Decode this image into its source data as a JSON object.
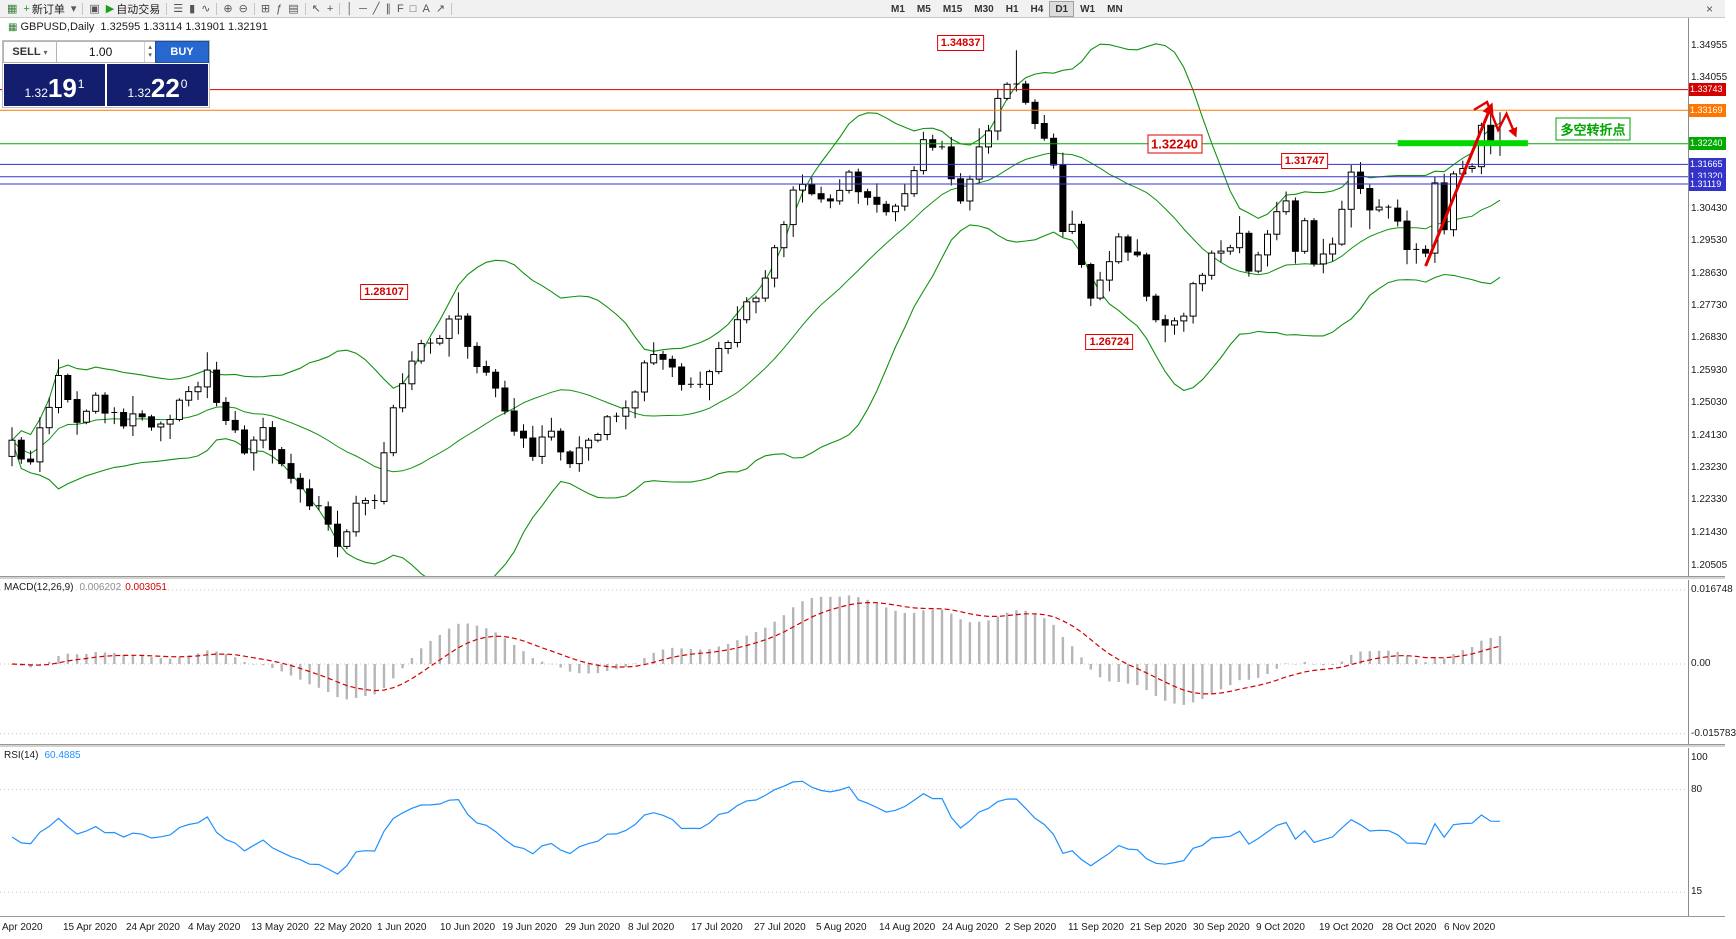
{
  "window": {
    "close_icon": "×"
  },
  "toolbar": {
    "buttons": [
      {
        "name": "chart-window-icon",
        "glyph": "▦",
        "color": "#3a7d3a"
      },
      {
        "name": "new-order-button",
        "glyph": "+",
        "color": "#1e9e1e",
        "label": "新订单"
      },
      {
        "name": "chart-dropdown-icon",
        "glyph": "▾"
      },
      {
        "sep": true
      },
      {
        "name": "expert-advisors-icon",
        "glyph": "▣"
      },
      {
        "name": "autotrading-button",
        "glyph": "▶",
        "color": "#18a018",
        "label": "自动交易"
      },
      {
        "sep": true
      },
      {
        "name": "bar-chart-icon",
        "glyph": "☰"
      },
      {
        "name": "candlestick-chart-icon",
        "glyph": "▮"
      },
      {
        "name": "line-chart-icon",
        "glyph": "∿"
      },
      {
        "sep": true
      },
      {
        "name": "zoom-in-icon",
        "glyph": "⊕"
      },
      {
        "name": "zoom-out-icon",
        "glyph": "⊖"
      },
      {
        "sep": true
      },
      {
        "name": "tile-windows-icon",
        "glyph": "⊞"
      },
      {
        "name": "indicators-icon",
        "glyph": "ƒ"
      },
      {
        "name": "templates-icon",
        "glyph": "▤"
      },
      {
        "sep": true
      },
      {
        "name": "cursor-icon",
        "glyph": "↖"
      },
      {
        "name": "crosshair-icon",
        "glyph": "+"
      },
      {
        "sep": true
      },
      {
        "name": "vertical-line-icon",
        "glyph": "│"
      },
      {
        "name": "horizontal-line-icon",
        "glyph": "─"
      },
      {
        "name": "trendline-icon",
        "glyph": "╱"
      },
      {
        "name": "channel-icon",
        "glyph": "∥"
      },
      {
        "name": "fibonacci-icon",
        "glyph": "F"
      },
      {
        "name": "shapes-icon",
        "glyph": "□"
      },
      {
        "name": "text-icon",
        "glyph": "A"
      },
      {
        "name": "arrows-icon",
        "glyph": "↗"
      },
      {
        "sep": true
      }
    ],
    "timeframes": [
      "M1",
      "M5",
      "M15",
      "M30",
      "H1",
      "H4",
      "D1",
      "W1",
      "MN"
    ],
    "active_timeframe": "D1"
  },
  "chart": {
    "title": "GBPUSD,Daily",
    "ohlc": "1.32595 1.33114 1.31901 1.32191"
  },
  "trade_panel": {
    "sell_label": "SELL",
    "buy_label": "BUY",
    "volume": "1.00",
    "bid": {
      "big": "1.32",
      "pips": "19",
      "point": "1"
    },
    "ask": {
      "big": "1.32",
      "pips": "22",
      "point": "0"
    }
  },
  "macd": {
    "label": "MACD(12,26,9)",
    "value_main": "0.006202",
    "value_signal": "0.003051",
    "axis": [
      "0.016748",
      "0.00",
      "-0.015783"
    ]
  },
  "rsi": {
    "label": "RSI(14)",
    "value": "60.4885",
    "axis": [
      "100",
      "80",
      "15"
    ],
    "levels": [
      80,
      15
    ]
  },
  "date_axis": [
    "Apr 2020",
    "15 Apr 2020",
    "24 Apr 2020",
    "4 May 2020",
    "13 May 2020",
    "22 May 2020",
    "1 Jun 2020",
    "10 Jun 2020",
    "19 Jun 2020",
    "29 Jun 2020",
    "8 Jul 2020",
    "17 Jul 2020",
    "27 Jul 2020",
    "5 Aug 2020",
    "14 Aug 2020",
    "24 Aug 2020",
    "2 Sep 2020",
    "11 Sep 2020",
    "21 Sep 2020",
    "30 Sep 2020",
    "9 Oct 2020",
    "19 Oct 2020",
    "28 Oct 2020",
    "6 Nov 2020"
  ],
  "chart_data": {
    "type": "candlestick",
    "symbol": "GBPUSD",
    "timeframe": "Daily",
    "visible_range": {
      "price_min": 1.20505,
      "price_max": 1.34955,
      "date_start": "Apr 2020",
      "date_end": "6 Nov 2020"
    },
    "days": 161,
    "close_anchors": [
      [
        0,
        1.24
      ],
      [
        2,
        1.234
      ],
      [
        5,
        1.258
      ],
      [
        7,
        1.245
      ],
      [
        9,
        1.2525
      ],
      [
        12,
        1.244
      ],
      [
        14,
        1.2465
      ],
      [
        16,
        1.2445
      ],
      [
        19,
        1.2535
      ],
      [
        21,
        1.2595
      ],
      [
        23,
        1.2455
      ],
      [
        25,
        1.2365
      ],
      [
        27,
        1.2435
      ],
      [
        29,
        1.2335
      ],
      [
        31,
        1.2265
      ],
      [
        33,
        1.2215
      ],
      [
        35,
        1.2105
      ],
      [
        37,
        1.2225
      ],
      [
        39,
        1.223
      ],
      [
        41,
        1.249
      ],
      [
        43,
        1.262
      ],
      [
        45,
        1.267
      ],
      [
        48,
        1.2745
      ],
      [
        50,
        1.2605
      ],
      [
        52,
        1.2545
      ],
      [
        54,
        1.2425
      ],
      [
        56,
        1.2355
      ],
      [
        58,
        1.2425
      ],
      [
        60,
        1.2335
      ],
      [
        62,
        1.24
      ],
      [
        64,
        1.2465
      ],
      [
        66,
        1.249
      ],
      [
        68,
        1.2615
      ],
      [
        70,
        1.2625
      ],
      [
        72,
        1.2555
      ],
      [
        74,
        1.2555
      ],
      [
        76,
        1.2655
      ],
      [
        78,
        1.2735
      ],
      [
        80,
        1.2795
      ],
      [
        82,
        1.2935
      ],
      [
        84,
        1.3095
      ],
      [
        86,
        1.3085
      ],
      [
        88,
        1.3065
      ],
      [
        90,
        1.3145
      ],
      [
        92,
        1.3075
      ],
      [
        94,
        1.3035
      ],
      [
        96,
        1.3085
      ],
      [
        98,
        1.3235
      ],
      [
        100,
        1.3215
      ],
      [
        102,
        1.3065
      ],
      [
        104,
        1.3215
      ],
      [
        106,
        1.335
      ],
      [
        108,
        1.339
      ],
      [
        110,
        1.328
      ],
      [
        112,
        1.3165
      ],
      [
        113,
        1.298
      ],
      [
        114,
        1.3
      ],
      [
        116,
        1.2795
      ],
      [
        117,
        1.2845
      ],
      [
        119,
        1.2965
      ],
      [
        121,
        1.2915
      ],
      [
        123,
        1.2735
      ],
      [
        124,
        1.272
      ],
      [
        126,
        1.2745
      ],
      [
        127,
        1.2835
      ],
      [
        129,
        1.292
      ],
      [
        131,
        1.2935
      ],
      [
        132,
        1.2975
      ],
      [
        133,
        1.287
      ],
      [
        134,
        1.2915
      ],
      [
        136,
        1.3035
      ],
      [
        137,
        1.3065
      ],
      [
        138,
        1.2925
      ],
      [
        139,
        1.301
      ],
      [
        140,
        1.289
      ],
      [
        142,
        1.2945
      ],
      [
        144,
        1.3145
      ],
      [
        146,
        1.304
      ],
      [
        148,
        1.3045
      ],
      [
        150,
        1.293
      ],
      [
        152,
        1.292
      ],
      [
        153,
        1.3115
      ],
      [
        154,
        1.2985
      ],
      [
        155,
        1.314
      ],
      [
        156,
        1.3155
      ],
      [
        157,
        1.316
      ],
      [
        158,
        1.3275
      ],
      [
        159,
        1.322
      ],
      [
        160,
        1.32191
      ]
    ],
    "wick_overrides": {
      "35": {
        "low": 1.2075
      },
      "48": {
        "high": 1.28107
      },
      "108": {
        "high": 1.34837
      },
      "124": {
        "low": 1.26724
      },
      "159": {
        "high": 1.33105
      },
      "160": {
        "high": 1.33114,
        "low": 1.31901
      }
    },
    "indicators": {
      "bollinger": {
        "period": 20,
        "deviation": 2,
        "color": "#109210"
      },
      "macd": {
        "fast": 12,
        "slow": 26,
        "signal": 9
      },
      "rsi": {
        "period": 14
      }
    },
    "hlines": [
      {
        "value": 1.33743,
        "color": "#d40000",
        "tag": "1.33743"
      },
      {
        "value": 1.33169,
        "color": "#ff7700",
        "tag": "1.33169"
      },
      {
        "value": 1.3224,
        "color": "#00aa00",
        "tag": "1.32240"
      },
      {
        "value": 1.31665,
        "color": "#3333cc",
        "tag": "1.31665"
      },
      {
        "value": 1.3132,
        "color": "#3333cc",
        "tag": "1.31320"
      },
      {
        "value": 1.31119,
        "color": "#3333cc",
        "tag": "1.31119"
      }
    ],
    "price_axis": [
      "1.34955",
      "1.34055",
      "1.30430",
      "1.29530",
      "1.28630",
      "1.27730",
      "1.26830",
      "1.25930",
      "1.25030",
      "1.24130",
      "1.23230",
      "1.22330",
      "1.21430",
      "1.20505"
    ],
    "price_labels": [
      {
        "text": "1.34837",
        "day": 102,
        "price": 1.3505
      },
      {
        "text": "1.32240",
        "day": 125,
        "price": 1.3224,
        "big": true
      },
      {
        "text": "1.31747",
        "day": 139,
        "price": 1.31747
      },
      {
        "text": "1.28107",
        "day": 40,
        "price": 1.28107
      },
      {
        "text": "1.26724",
        "day": 118,
        "price": 1.26724
      }
    ],
    "turning_point_label": {
      "text": "多空转折点",
      "day": 170,
      "price": 1.3266,
      "color": "#00a400"
    },
    "highlight_segment": {
      "day_start": 149,
      "day_end": 163,
      "price": 1.3224,
      "color": "#00d800"
    },
    "arrow": {
      "from": [
        152,
        1.2884
      ],
      "to": [
        159,
        1.3326
      ],
      "color": "#e00000"
    },
    "zigzag": [
      [
        157.2,
        1.3318
      ],
      [
        158.6,
        1.334
      ],
      [
        159.8,
        1.3262
      ],
      [
        160.7,
        1.3307
      ],
      [
        161.6,
        1.3251
      ]
    ]
  }
}
